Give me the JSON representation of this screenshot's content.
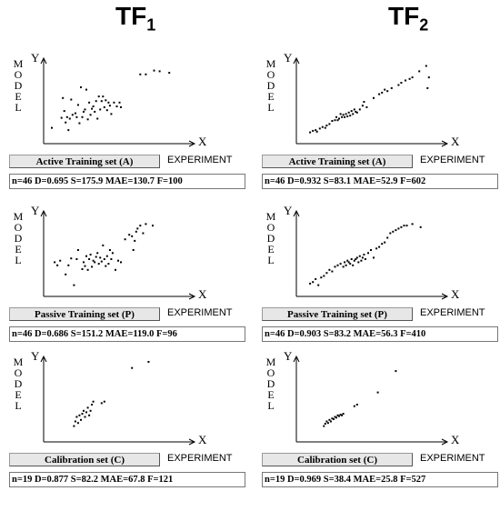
{
  "columns": [
    {
      "title": "TF",
      "sub": "1"
    },
    {
      "title": "TF",
      "sub": "2"
    }
  ],
  "axis_labels": {
    "y": "Y",
    "x": "X",
    "model": "MODEL",
    "experiment": "EXPERIMENT"
  },
  "chart_data": [
    {
      "type": "scatter",
      "column": "TF1",
      "set": "Active Training set (A)",
      "stats": "n=46  D=0.695  S=175.9  MAE=130.7  F=100",
      "xlim": [
        0,
        100
      ],
      "ylim": [
        0,
        100
      ],
      "points": [
        [
          2,
          16
        ],
        [
          9,
          29
        ],
        [
          10,
          55
        ],
        [
          11,
          38
        ],
        [
          12,
          23
        ],
        [
          13,
          30
        ],
        [
          14,
          13
        ],
        [
          15,
          28
        ],
        [
          16,
          53
        ],
        [
          17,
          33
        ],
        [
          19,
          35
        ],
        [
          20,
          30
        ],
        [
          21,
          46
        ],
        [
          22,
          22
        ],
        [
          23,
          69
        ],
        [
          24,
          30
        ],
        [
          25,
          37
        ],
        [
          26,
          40
        ],
        [
          27,
          66
        ],
        [
          28,
          27
        ],
        [
          29,
          49
        ],
        [
          30,
          33
        ],
        [
          31,
          41
        ],
        [
          32,
          44
        ],
        [
          33,
          37
        ],
        [
          34,
          51
        ],
        [
          35,
          28
        ],
        [
          36,
          57
        ],
        [
          37,
          40
        ],
        [
          38,
          51
        ],
        [
          39,
          57
        ],
        [
          40,
          43
        ],
        [
          41,
          52
        ],
        [
          42,
          39
        ],
        [
          43,
          49
        ],
        [
          44,
          45
        ],
        [
          45,
          34
        ],
        [
          47,
          49
        ],
        [
          49,
          44
        ],
        [
          51,
          49
        ],
        [
          52,
          43
        ],
        [
          66,
          86
        ],
        [
          70,
          86
        ],
        [
          76,
          91
        ],
        [
          80,
          90
        ],
        [
          87,
          88
        ]
      ]
    },
    {
      "type": "scatter",
      "column": "TF2",
      "set": "Active Training set (A)",
      "stats": "n=46  D=0.932  S=83.1  MAE=52.9  F=602",
      "xlim": [
        0,
        100
      ],
      "ylim": [
        0,
        100
      ],
      "points": [
        [
          6,
          10
        ],
        [
          8,
          12
        ],
        [
          10,
          13
        ],
        [
          11,
          11
        ],
        [
          13,
          15
        ],
        [
          15,
          17
        ],
        [
          17,
          16
        ],
        [
          18,
          19
        ],
        [
          20,
          21
        ],
        [
          22,
          25
        ],
        [
          24,
          26
        ],
        [
          25,
          30
        ],
        [
          26,
          26
        ],
        [
          27,
          28
        ],
        [
          28,
          34
        ],
        [
          29,
          30
        ],
        [
          30,
          33
        ],
        [
          31,
          30
        ],
        [
          32,
          34
        ],
        [
          33,
          31
        ],
        [
          34,
          36
        ],
        [
          35,
          32
        ],
        [
          36,
          38
        ],
        [
          37,
          34
        ],
        [
          38,
          40
        ],
        [
          39,
          37
        ],
        [
          40,
          36
        ],
        [
          42,
          40
        ],
        [
          44,
          45
        ],
        [
          45,
          50
        ],
        [
          47,
          43
        ],
        [
          52,
          55
        ],
        [
          56,
          60
        ],
        [
          58,
          62
        ],
        [
          60,
          66
        ],
        [
          62,
          64
        ],
        [
          65,
          68
        ],
        [
          70,
          72
        ],
        [
          72,
          75
        ],
        [
          75,
          78
        ],
        [
          78,
          80
        ],
        [
          80,
          82
        ],
        [
          85,
          90
        ],
        [
          90,
          97
        ],
        [
          92,
          82
        ],
        [
          91,
          68
        ]
      ]
    },
    {
      "type": "scatter",
      "column": "TF1",
      "set": "Passive Training set (P)",
      "stats": "n=46  D=0.686  S=151.2  MAE=119.0  F=96",
      "xlim": [
        0,
        100
      ],
      "ylim": [
        0,
        100
      ],
      "points": [
        [
          4,
          40
        ],
        [
          6,
          36
        ],
        [
          8,
          42
        ],
        [
          12,
          24
        ],
        [
          14,
          36
        ],
        [
          16,
          45
        ],
        [
          18,
          10
        ],
        [
          20,
          44
        ],
        [
          21,
          56
        ],
        [
          24,
          31
        ],
        [
          25,
          40
        ],
        [
          26,
          35
        ],
        [
          27,
          48
        ],
        [
          28,
          30
        ],
        [
          29,
          44
        ],
        [
          30,
          50
        ],
        [
          31,
          34
        ],
        [
          32,
          42
        ],
        [
          33,
          40
        ],
        [
          34,
          47
        ],
        [
          35,
          52
        ],
        [
          36,
          38
        ],
        [
          37,
          46
        ],
        [
          38,
          41
        ],
        [
          39,
          62
        ],
        [
          40,
          44
        ],
        [
          41,
          35
        ],
        [
          42,
          48
        ],
        [
          43,
          38
        ],
        [
          44,
          56
        ],
        [
          45,
          44
        ],
        [
          46,
          52
        ],
        [
          48,
          30
        ],
        [
          50,
          42
        ],
        [
          52,
          40
        ],
        [
          55,
          70
        ],
        [
          58,
          76
        ],
        [
          60,
          74
        ],
        [
          61,
          56
        ],
        [
          62,
          68
        ],
        [
          63,
          80
        ],
        [
          64,
          84
        ],
        [
          66,
          88
        ],
        [
          68,
          78
        ],
        [
          70,
          90
        ],
        [
          75,
          88
        ]
      ]
    },
    {
      "type": "scatter",
      "column": "TF2",
      "set": "Passive Training set (P)",
      "stats": "n=46  D=0.903  S=83.2  MAE=56.3  F=410",
      "xlim": [
        0,
        100
      ],
      "ylim": [
        0,
        100
      ],
      "points": [
        [
          6,
          12
        ],
        [
          8,
          14
        ],
        [
          10,
          18
        ],
        [
          12,
          10
        ],
        [
          14,
          20
        ],
        [
          16,
          22
        ],
        [
          18,
          26
        ],
        [
          20,
          30
        ],
        [
          22,
          28
        ],
        [
          24,
          34
        ],
        [
          26,
          36
        ],
        [
          28,
          38
        ],
        [
          30,
          34
        ],
        [
          31,
          40
        ],
        [
          32,
          36
        ],
        [
          33,
          42
        ],
        [
          34,
          40
        ],
        [
          35,
          38
        ],
        [
          36,
          44
        ],
        [
          37,
          36
        ],
        [
          38,
          42
        ],
        [
          39,
          44
        ],
        [
          40,
          46
        ],
        [
          41,
          40
        ],
        [
          42,
          48
        ],
        [
          43,
          42
        ],
        [
          44,
          46
        ],
        [
          45,
          50
        ],
        [
          46,
          44
        ],
        [
          48,
          52
        ],
        [
          50,
          56
        ],
        [
          52,
          46
        ],
        [
          54,
          58
        ],
        [
          56,
          60
        ],
        [
          58,
          64
        ],
        [
          60,
          66
        ],
        [
          62,
          72
        ],
        [
          64,
          78
        ],
        [
          66,
          80
        ],
        [
          68,
          82
        ],
        [
          70,
          84
        ],
        [
          72,
          86
        ],
        [
          74,
          88
        ],
        [
          76,
          88
        ],
        [
          80,
          90
        ],
        [
          86,
          86
        ]
      ]
    },
    {
      "type": "scatter",
      "column": "TF1",
      "set": "Calibration set (C)",
      "stats": "n=19  D=0.877  S=82.2  MAE=67.8  F=121",
      "xlim": [
        0,
        100
      ],
      "ylim": [
        0,
        100
      ],
      "points": [
        [
          18,
          16
        ],
        [
          19,
          22
        ],
        [
          20,
          28
        ],
        [
          21,
          20
        ],
        [
          22,
          30
        ],
        [
          23,
          24
        ],
        [
          24,
          32
        ],
        [
          25,
          36
        ],
        [
          26,
          28
        ],
        [
          27,
          34
        ],
        [
          28,
          40
        ],
        [
          29,
          30
        ],
        [
          30,
          36
        ],
        [
          31,
          44
        ],
        [
          32,
          48
        ],
        [
          38,
          46
        ],
        [
          40,
          48
        ],
        [
          60,
          92
        ],
        [
          72,
          100
        ]
      ]
    },
    {
      "type": "scatter",
      "column": "TF2",
      "set": "Calibration set (C)",
      "stats": "n=19  D=0.969  S=38.4  MAE=25.8  F=527",
      "xlim": [
        0,
        100
      ],
      "ylim": [
        0,
        100
      ],
      "points": [
        [
          16,
          16
        ],
        [
          17,
          19
        ],
        [
          18,
          22
        ],
        [
          19,
          20
        ],
        [
          20,
          24
        ],
        [
          21,
          22
        ],
        [
          22,
          26
        ],
        [
          23,
          25
        ],
        [
          24,
          28
        ],
        [
          25,
          27
        ],
        [
          26,
          30
        ],
        [
          27,
          29
        ],
        [
          28,
          31
        ],
        [
          29,
          30
        ],
        [
          30,
          32
        ],
        [
          38,
          42
        ],
        [
          40,
          44
        ],
        [
          55,
          60
        ],
        [
          68,
          88
        ]
      ]
    }
  ]
}
